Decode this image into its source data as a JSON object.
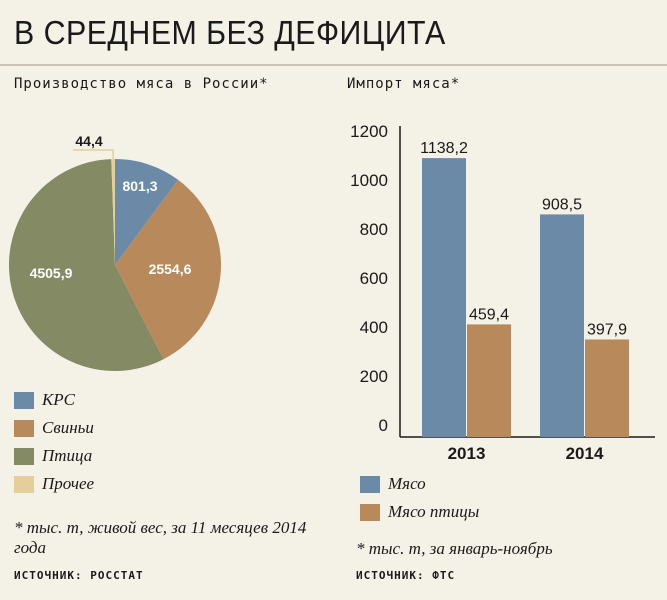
{
  "page": {
    "title": "В СРЕДНЕМ БЕЗ ДЕФИЦИТА"
  },
  "colors": {
    "krs": "#6b8aa8",
    "pigs": "#b8895a",
    "poultry": "#838a64",
    "other": "#e4cf9a",
    "meat": "#6b8aa8",
    "poultry_meat": "#b8895a",
    "background": "#f4f1e6"
  },
  "chart_data": [
    {
      "type": "pie",
      "title": "Производство мяса в России*",
      "slices": [
        {
          "name": "КРС",
          "value": 801.3,
          "label": "801,3",
          "color": "#6b8aa8"
        },
        {
          "name": "Свиньи",
          "value": 2554.6,
          "label": "2554,6",
          "color": "#b8895a"
        },
        {
          "name": "Птица",
          "value": 4505.9,
          "label": "4505,9",
          "color": "#838a64"
        },
        {
          "name": "Прочее",
          "value": 44.4,
          "label": "44,4",
          "color": "#e4cf9a"
        }
      ],
      "legend_position": "bottom-left",
      "note": "* тыс. т, живой вес, за 11 месяцев 2014 года",
      "source": "ИСТОЧНИК: РОССТАТ"
    },
    {
      "type": "bar",
      "title": "Импорт мяса*",
      "categories": [
        "2013",
        "2014"
      ],
      "series": [
        {
          "name": "Мясо",
          "values": [
            1138.2,
            908.5
          ],
          "labels": [
            "1138,2",
            "908,5"
          ],
          "color": "#6b8aa8"
        },
        {
          "name": "Мясо птицы",
          "values": [
            459.4,
            397.9
          ],
          "labels": [
            "459,4",
            "397,9"
          ],
          "color": "#b8895a"
        }
      ],
      "y_ticks": [
        0,
        200,
        400,
        600,
        800,
        1000,
        1200
      ],
      "ylim": [
        0,
        1200
      ],
      "grid": false,
      "legend_position": "bottom-left",
      "note": "* тыс. т, за январь-ноябрь",
      "source": "ИСТОЧНИК: ФТС"
    }
  ]
}
